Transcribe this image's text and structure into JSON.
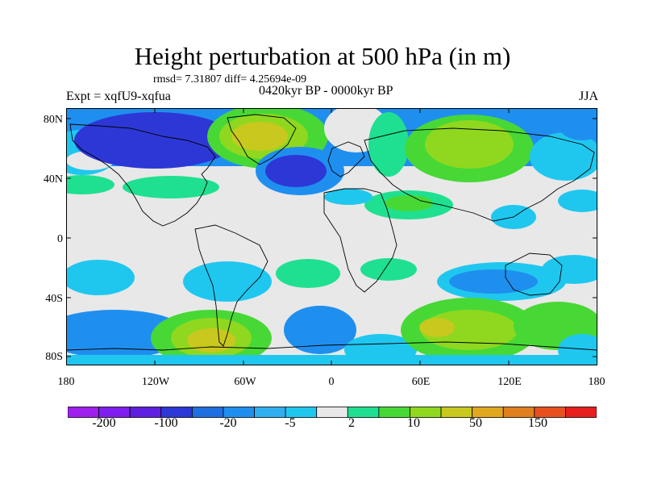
{
  "title": "Height perturbation at 500 hPa (in m)",
  "stats": "rmsd= 7.31807 diff= 4.25694e-09",
  "experiment": "Expt = xqfU9-xqfua",
  "period": "0420kyr BP - 0000kyr BP",
  "season": "JJA",
  "lat_ticks": [
    "80N",
    "40N",
    "0",
    "40S",
    "80S"
  ],
  "lon_ticks": [
    "180",
    "120W",
    "60W",
    "0",
    "60E",
    "120E",
    "180"
  ],
  "colorbar": {
    "colors": [
      "#9f1fef",
      "#7f1fef",
      "#5f1fe0",
      "#2d37d6",
      "#1f6fe0",
      "#1f8fef",
      "#2fafef",
      "#1fc7ef",
      "#e8e8e8",
      "#1fe090",
      "#47d836",
      "#8fd81f",
      "#c8c81f",
      "#dfa81f",
      "#e0801f",
      "#e8501f",
      "#e81f1f"
    ],
    "tick_labels": [
      "-200",
      "-100",
      "-20",
      "-5",
      "2",
      "10",
      "50",
      "150"
    ]
  }
}
